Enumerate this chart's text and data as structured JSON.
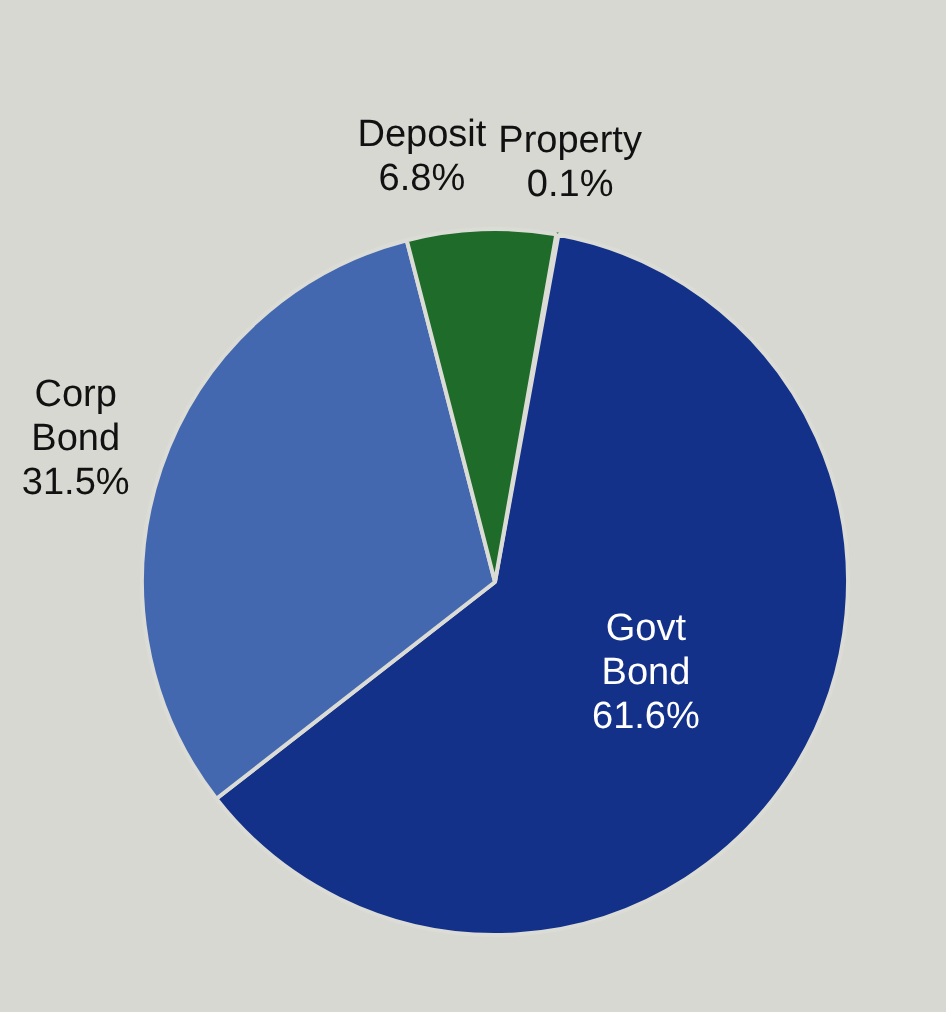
{
  "chart_data": {
    "type": "pie",
    "categories": [
      "Property",
      "Govt Bond",
      "Corp Bond",
      "Deposit"
    ],
    "values": [
      0.1,
      61.6,
      31.5,
      6.8
    ],
    "colors": [
      "#1f6b2a",
      "#14318a",
      "#4468b0",
      "#1f6b2a"
    ],
    "value_labels": [
      "0.1%",
      "61.6%",
      "31.5%",
      "6.8%"
    ],
    "legend": false
  }
}
